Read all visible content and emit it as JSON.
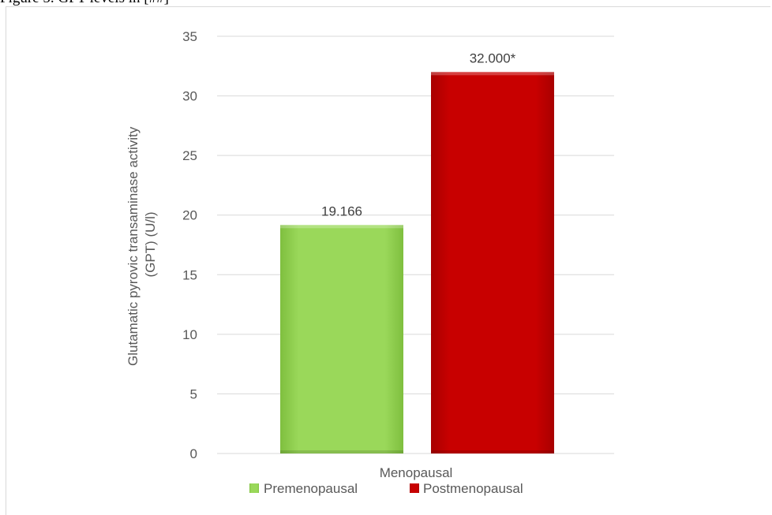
{
  "caption": "Figure 5. GPT levels in [##]",
  "chart_data": {
    "type": "bar",
    "categories": [
      "Menopausal"
    ],
    "series": [
      {
        "name": "Premenopausal",
        "values": [
          19.166
        ],
        "label": "19.166",
        "color": "#92d050"
      },
      {
        "name": "Postmenopausal",
        "values": [
          32.0
        ],
        "label": "32.000*",
        "color": "#c00000"
      }
    ],
    "title": "",
    "xlabel": "Menopausal",
    "ylabel_line1": "Glutamatic pyrovic transaminase activity",
    "ylabel_line2": "(GPT) (U/l)",
    "ylim": [
      0,
      35
    ],
    "yticks": [
      0,
      5,
      10,
      15,
      20,
      25,
      30,
      35
    ],
    "grid": true,
    "legend_position": "bottom"
  }
}
